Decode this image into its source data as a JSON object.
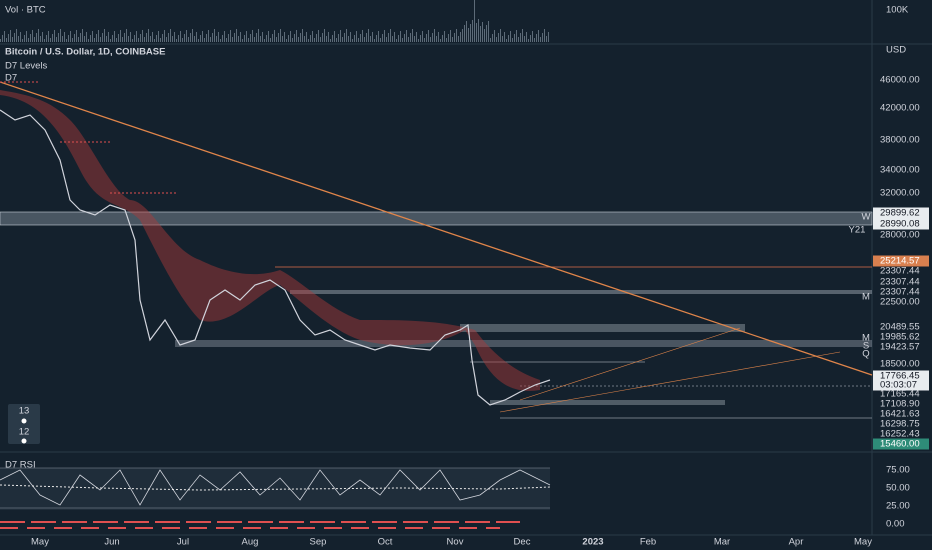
{
  "header": {
    "volume_label": "Vol · BTC",
    "symbol": "Bitcoin / U.S. Dollar, 1D, COINBASE",
    "indicators": [
      "D7 Levels",
      "D7"
    ]
  },
  "volume_axis": [
    "100K"
  ],
  "price_axis": {
    "currency": "USD",
    "labels": [
      "46000.00",
      "42000.00",
      "38000.00",
      "34000.00",
      "32000.00",
      "29899.62",
      "28990.08",
      "28000.00",
      "25214.57",
      "23307.44",
      "23307.44",
      "23307.44",
      "22500.00",
      "20489.55",
      "19985.62",
      "19423.57",
      "18500.00",
      "17766.45",
      "03:03:07",
      "17165.44",
      "17108.90",
      "16421.63",
      "16298.75",
      "16252.43",
      "15460.00"
    ]
  },
  "level_tags": [
    "W",
    "Y21",
    "M",
    "M",
    "S",
    "Q"
  ],
  "badges": [
    "13",
    "12"
  ],
  "rsi": {
    "title": "D7 RSI",
    "labels": [
      "75.00",
      "50.00",
      "25.00",
      "0.00"
    ]
  },
  "time_axis": [
    "May",
    "Jun",
    "Jul",
    "Aug",
    "Sep",
    "Oct",
    "Nov",
    "Dec",
    "2023",
    "Feb",
    "Mar",
    "Apr",
    "May"
  ]
}
